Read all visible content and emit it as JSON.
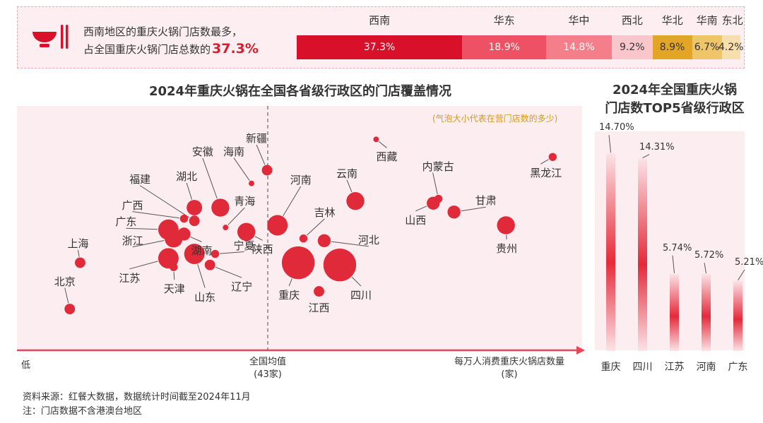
{
  "banner": {
    "line1": "西南地区的重庆火锅门店数最多，",
    "line2_prefix": "占全国重庆火锅门店总数的",
    "line2_share": "37.3%",
    "regions": [
      {
        "name": "西南",
        "pct": 37.3,
        "label": "37.3%",
        "color": "#d8102a",
        "text_color": "#ffffff"
      },
      {
        "name": "华东",
        "pct": 18.9,
        "label": "18.9%",
        "color": "#ee5164",
        "text_color": "#ffffff"
      },
      {
        "name": "华中",
        "pct": 14.8,
        "label": "14.8%",
        "color": "#f47f8b",
        "text_color": "#ffffff"
      },
      {
        "name": "西北",
        "pct": 9.2,
        "label": "9.2%",
        "color": "#f9c6cc",
        "text_color": "#333333"
      },
      {
        "name": "华北",
        "pct": 8.9,
        "label": "8.9%",
        "color": "#e3a526",
        "text_color": "#333333"
      },
      {
        "name": "华南",
        "pct": 6.7,
        "label": "6.7%",
        "color": "#efc56a",
        "text_color": "#333333"
      },
      {
        "name": "东北",
        "pct": 4.2,
        "label": "4.2%",
        "color": "#f6dfaa",
        "text_color": "#333333"
      }
    ]
  },
  "bubble_chart": {
    "title": "2024年重庆火锅在全国各省级行政区的门店覆盖情况",
    "note": "(气泡大小代表在营门店数的多少)",
    "axis_low": "低",
    "axis_mid_line1": "全国均值",
    "axis_mid_line2": "(43家)",
    "axis_high_line1": "每万人消费重庆火锅店数量",
    "axis_high_line2": "(家)",
    "accent": "#e12a39"
  },
  "chart_data": [
    {
      "type": "scatter",
      "title": "2024年重庆火锅在全国各省级行政区的门店覆盖情况",
      "xlabel": "每万人消费重庆火锅店数量(家)",
      "x_reference": {
        "label": "全国均值",
        "value": 43
      },
      "size_meaning": "在营门店数的多少",
      "x_scale": "relative (0 = lowest, 100 = highest)",
      "y_scale": "relative, no axis",
      "points": [
        {
          "name": "北京",
          "x": 5,
          "y": 12,
          "size": 3
        },
        {
          "name": "上海",
          "x": 7,
          "y": 33,
          "size": 3
        },
        {
          "name": "广西",
          "x": 27,
          "y": 53,
          "size": 2
        },
        {
          "name": "广东",
          "x": 24,
          "y": 48,
          "size": 7
        },
        {
          "name": "浙江",
          "x": 25,
          "y": 44,
          "size": 6
        },
        {
          "name": "江苏",
          "x": 24,
          "y": 35,
          "size": 7
        },
        {
          "name": "天津",
          "x": 25,
          "y": 31,
          "size": 2
        },
        {
          "name": "湖南",
          "x": 27,
          "y": 46,
          "size": 4
        },
        {
          "name": "湖北",
          "x": 29,
          "y": 58,
          "size": 5
        },
        {
          "name": "福建",
          "x": 29,
          "y": 52,
          "size": 3
        },
        {
          "name": "安徽",
          "x": 34,
          "y": 58,
          "size": 6
        },
        {
          "name": "山东",
          "x": 29,
          "y": 37,
          "size": 7
        },
        {
          "name": "辽宁",
          "x": 32,
          "y": 32,
          "size": 3
        },
        {
          "name": "宁夏",
          "x": 33,
          "y": 37,
          "size": 2
        },
        {
          "name": "青海",
          "x": 35,
          "y": 49,
          "size": 1
        },
        {
          "name": "陕西",
          "x": 39,
          "y": 47,
          "size": 6
        },
        {
          "name": "海南",
          "x": 40,
          "y": 69,
          "size": 1
        },
        {
          "name": "新疆",
          "x": 43,
          "y": 75,
          "size": 3
        },
        {
          "name": "河南",
          "x": 45,
          "y": 50,
          "size": 7
        },
        {
          "name": "吉林",
          "x": 50,
          "y": 44,
          "size": 2
        },
        {
          "name": "重庆",
          "x": 49,
          "y": 33,
          "size": 12
        },
        {
          "name": "四川",
          "x": 57,
          "y": 32,
          "size": 12
        },
        {
          "name": "江西",
          "x": 53,
          "y": 20,
          "size": 3
        },
        {
          "name": "河北",
          "x": 54,
          "y": 43,
          "size": 4
        },
        {
          "name": "云南",
          "x": 60,
          "y": 61,
          "size": 6
        },
        {
          "name": "西藏",
          "x": 64,
          "y": 89,
          "size": 1
        },
        {
          "name": "山西",
          "x": 75,
          "y": 60,
          "size": 4
        },
        {
          "name": "内蒙古",
          "x": 76,
          "y": 62,
          "size": 2
        },
        {
          "name": "甘肃",
          "x": 79,
          "y": 56,
          "size": 4
        },
        {
          "name": "贵州",
          "x": 89,
          "y": 50,
          "size": 6
        },
        {
          "name": "黑龙江",
          "x": 98,
          "y": 81,
          "size": 2
        }
      ]
    },
    {
      "type": "bar",
      "title": "2024年全国重庆火锅门店数TOP5省级行政区",
      "categories": [
        "重庆",
        "四川",
        "江苏",
        "河南",
        "广东"
      ],
      "values": [
        14.7,
        14.31,
        5.74,
        5.72,
        5.21
      ],
      "value_labels": [
        "14.70%",
        "14.31%",
        "5.74%",
        "5.72%",
        "5.21%"
      ],
      "ylim": [
        0,
        16.5
      ]
    }
  ],
  "top5": {
    "title_line1": "2024年全国重庆火锅",
    "title_line2": "门店数TOP5省级行政区"
  },
  "footer": {
    "source": "资料来源：红餐大数据，数据统计时间截至2024年11月",
    "note": "注：门店数据不含港澳台地区"
  }
}
